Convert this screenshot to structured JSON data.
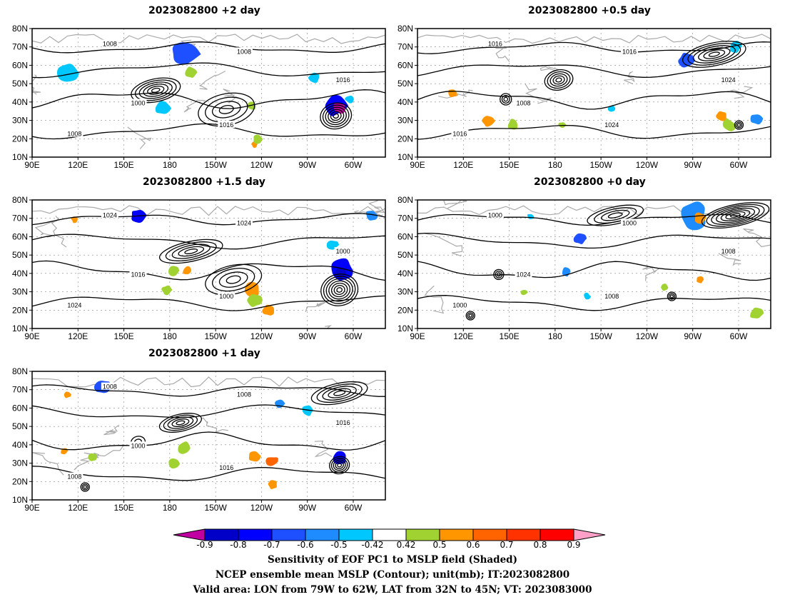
{
  "panels": [
    {
      "title": "2023082800 +2 day"
    },
    {
      "title": "2023082800 +0.5 day"
    },
    {
      "title": "2023082800 +1.5 day"
    },
    {
      "title": "2023082800 +0 day"
    },
    {
      "title": "2023082800 +1 day"
    }
  ],
  "lat_labels": [
    "80N",
    "70N",
    "60N",
    "50N",
    "40N",
    "30N",
    "20N",
    "10N"
  ],
  "lon_labels": [
    "90E",
    "120E",
    "150E",
    "180",
    "150W",
    "120W",
    "90W",
    "60W"
  ],
  "contour_labels": [
    "1000",
    "1008",
    "1016",
    "1024"
  ],
  "colors": {
    "levels": [
      "-0.9",
      "-0.8",
      "-0.7",
      "-0.6",
      "-0.5",
      "-0.42",
      "0.42",
      "0.5",
      "0.6",
      "0.7",
      "0.8",
      "0.9"
    ],
    "palette": [
      "#c000a0",
      "#0000c8",
      "#0000ff",
      "#1e50ff",
      "#1e8cff",
      "#00c8ff",
      "#ffffff",
      "#a0d232",
      "#ff9600",
      "#ff6400",
      "#ff3200",
      "#ff0000",
      "#ffa0c8"
    ],
    "coast": "#aaaaaa",
    "contour": "#000000",
    "grid": "#888888"
  },
  "colorbar_labels": [
    "-0.9",
    "-0.8",
    "-0.7",
    "-0.6",
    "-0.5",
    "-0.42",
    "0.42",
    "0.5",
    "0.6",
    "0.7",
    "0.8",
    "0.9"
  ],
  "caption": {
    "line1": "Sensitivity of EOF PC1 to MSLP field (Shaded)",
    "line2": "NCEP ensemble mean MSLP (Contour); unit(mb); IT:2023082800",
    "line3": "Valid area: LON from 79W to 62W, LAT from 32N to 45N; VT: 2023083000"
  }
}
